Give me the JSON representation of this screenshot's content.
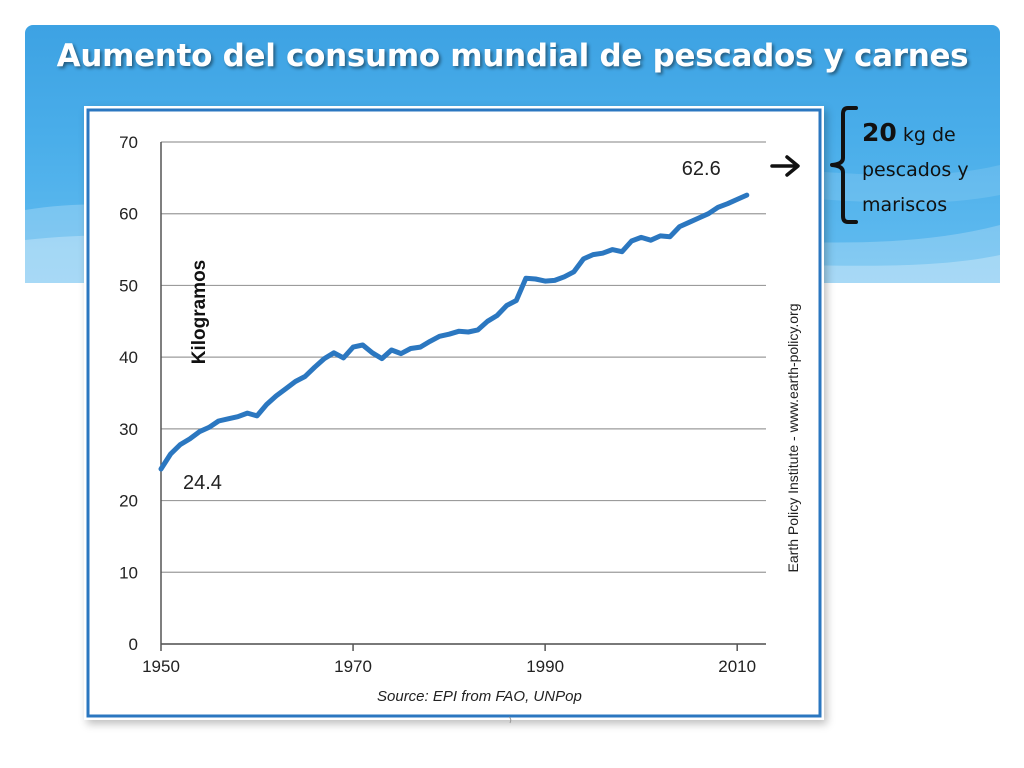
{
  "slide": {
    "title": "Aumento del consumo mundial de pescados y carnes",
    "note": {
      "amount": "20",
      "text": "kg de pescados y mariscos"
    }
  },
  "chart_data": {
    "type": "line",
    "ylabel": "Kilogramos",
    "ylim": [
      0,
      70
    ],
    "xlim": [
      1950,
      2013
    ],
    "yticks": [
      0,
      10,
      20,
      30,
      40,
      50,
      60,
      70
    ],
    "xticks": [
      1950,
      1970,
      1990,
      2010
    ],
    "grid": true,
    "source": "Source: EPI from FAO, UNPop",
    "credit": "Earth Policy Institute - www.earth-policy.org",
    "start_label": "24.4",
    "end_label": "62.6",
    "series": [
      {
        "color": "#2b77c0",
        "x": [
          1950,
          1951,
          1952,
          1953,
          1954,
          1955,
          1956,
          1957,
          1958,
          1959,
          1960,
          1961,
          1962,
          1963,
          1964,
          1965,
          1966,
          1967,
          1968,
          1969,
          1970,
          1971,
          1972,
          1973,
          1974,
          1975,
          1976,
          1977,
          1978,
          1979,
          1980,
          1981,
          1982,
          1983,
          1984,
          1985,
          1986,
          1987,
          1988,
          1989,
          1990,
          1991,
          1992,
          1993,
          1994,
          1995,
          1996,
          1997,
          1998,
          1999,
          2000,
          2001,
          2002,
          2003,
          2004,
          2005,
          2006,
          2007,
          2008,
          2009,
          2010,
          2011
        ],
        "values": [
          24.4,
          26.5,
          27.8,
          28.6,
          29.6,
          30.2,
          31.1,
          31.4,
          31.7,
          32.2,
          31.8,
          33.4,
          34.6,
          35.6,
          36.6,
          37.3,
          38.6,
          39.8,
          40.6,
          39.9,
          41.4,
          41.7,
          40.6,
          39.8,
          41.0,
          40.5,
          41.2,
          41.4,
          42.2,
          42.9,
          43.2,
          43.6,
          43.5,
          43.8,
          45.0,
          45.8,
          47.2,
          47.9,
          51.0,
          50.9,
          50.6,
          50.7,
          51.2,
          51.9,
          53.7,
          54.3,
          54.5,
          55.0,
          54.7,
          56.2,
          56.7,
          56.3,
          56.9,
          56.8,
          58.2,
          58.8,
          59.4,
          60.0,
          60.9,
          61.4,
          62.0,
          62.6
        ]
      }
    ]
  }
}
